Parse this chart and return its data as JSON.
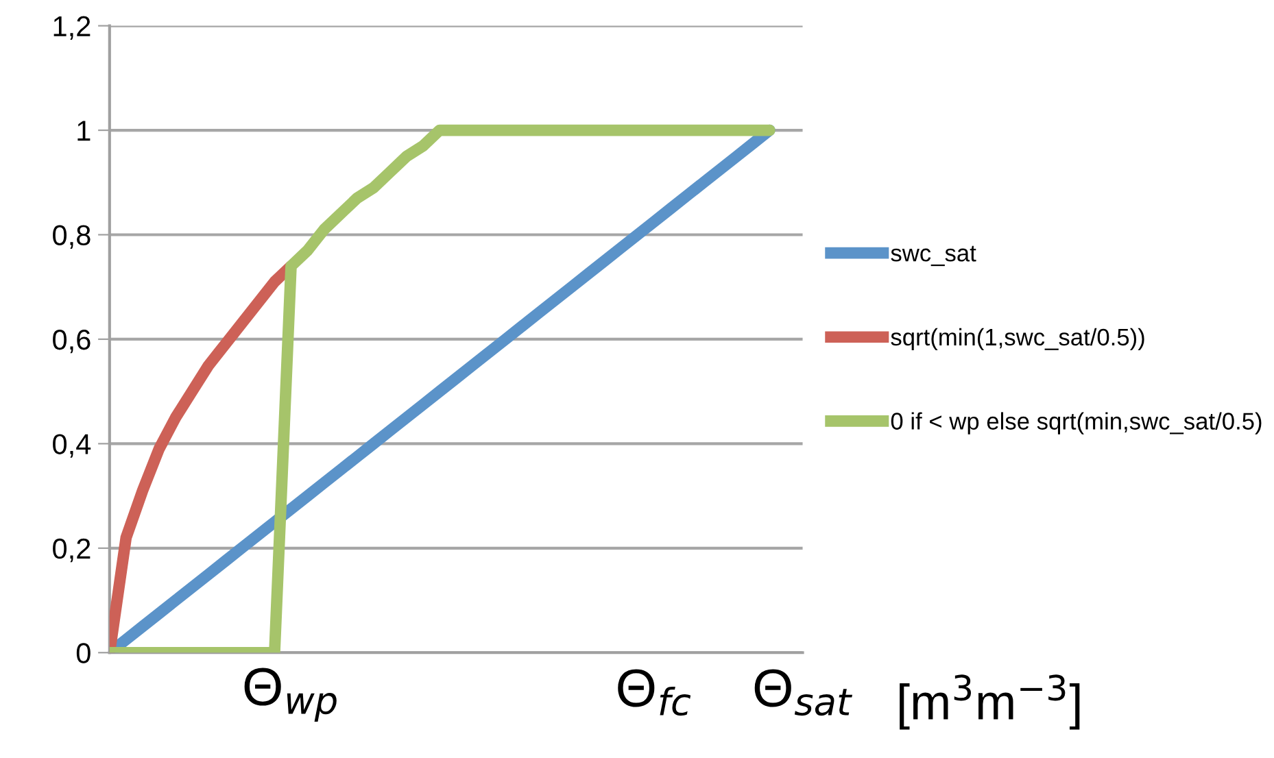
{
  "chart_data": {
    "type": "line",
    "xlabel": "[m$^{3}$m$^{−3}$]",
    "categories": [
      null,
      null,
      null,
      null,
      null,
      null,
      null,
      null,
      null,
      null,
      null,
      "Θ$_{wp}$",
      null,
      null,
      null,
      null,
      null,
      null,
      null,
      null,
      null,
      null,
      null,
      null,
      null,
      null,
      null,
      null,
      null,
      null,
      null,
      null,
      null,
      "Θ$_{fc}$",
      null,
      null,
      null,
      null,
      null,
      null,
      null,
      null,
      "Θ$_{sat}$"
    ],
    "ylim": [
      0,
      1.2
    ],
    "yticks": [
      {
        "value": 0,
        "label": "0"
      },
      {
        "value": 0.2,
        "label": "0,2"
      },
      {
        "value": 0.4,
        "label": "0,4"
      },
      {
        "value": 0.6,
        "label": "0,6"
      },
      {
        "value": 0.8,
        "label": "0,8"
      },
      {
        "value": 1,
        "label": "1"
      },
      {
        "value": 1.2,
        "label": "1,2"
      }
    ],
    "grid": "y",
    "legend": "right",
    "marker": "none",
    "line_style": "solid",
    "series": [
      {
        "name": "swc_sat",
        "color": "#5b93c9",
        "values": [
          0,
          0.025,
          0.05,
          0.075,
          0.1,
          0.125,
          0.15,
          0.175,
          0.2,
          0.225,
          0.25,
          0.275,
          0.3,
          0.325,
          0.35,
          0.375,
          0.4,
          0.425,
          0.45,
          0.475,
          0.5,
          0.525,
          0.55,
          0.575,
          0.6,
          0.625,
          0.65,
          0.675,
          0.7,
          0.725,
          0.75,
          0.775,
          0.8,
          0.825,
          0.85,
          0.875,
          0.9,
          0.925,
          0.95,
          0.975,
          1,
          null,
          null
        ]
      },
      {
        "name": "sqrt(min(1,swc_sat/0.5))",
        "color": "#cd6157",
        "values": [
          0,
          0.22,
          0.31,
          0.39,
          0.45,
          0.5,
          0.55,
          0.59,
          0.63,
          0.67,
          0.71,
          0.74,
          null,
          null,
          null,
          null,
          null,
          null,
          null,
          null,
          null,
          null,
          null,
          null,
          null,
          null,
          null,
          null,
          null,
          null,
          null,
          null,
          null,
          null,
          null,
          null,
          null,
          null,
          null,
          null,
          null,
          null,
          null
        ]
      },
      {
        "name": "0 if < wp else sqrt(min,swc_sat/0.5)",
        "color": "#a6c46a",
        "values": [
          0,
          0,
          0,
          0,
          0,
          0,
          0,
          0,
          0,
          0,
          0,
          0.74,
          0.77,
          0.81,
          0.84,
          0.87,
          0.89,
          0.92,
          0.95,
          0.97,
          1,
          1,
          1,
          1,
          1,
          1,
          1,
          1,
          1,
          1,
          1,
          1,
          1,
          1,
          1,
          1,
          1,
          1,
          1,
          1,
          1,
          null,
          null
        ]
      }
    ]
  }
}
